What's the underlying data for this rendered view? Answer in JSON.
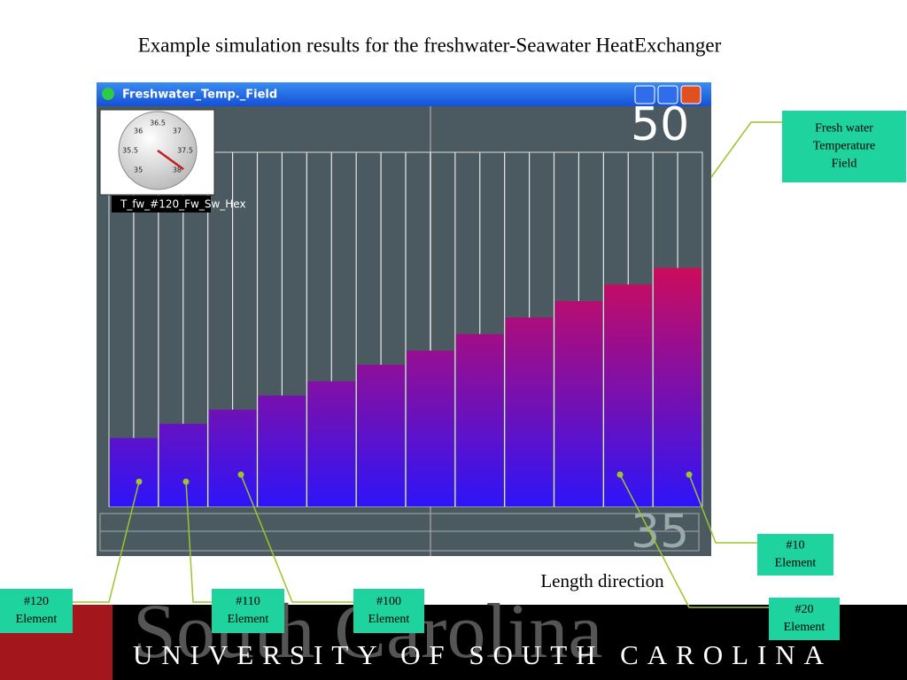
{
  "slide": {
    "title": "Example simulation results for the freshwater-Seawater HeatExchanger",
    "window_title": "Freshwater_Temp._Field",
    "gauge": {
      "labels": [
        "35",
        "35.5",
        "36",
        "36.5",
        "37",
        "37.5",
        "38"
      ],
      "value": 37.9,
      "range": [
        35,
        38
      ]
    },
    "gauge_caption": "T_fw_#120_Fw_Sw_Hex",
    "annotations": [
      {
        "lines": [
          "Fresh water",
          "Temperature",
          "Field"
        ]
      },
      {
        "lines": [
          "#10",
          "Element"
        ]
      },
      {
        "lines": [
          "#20",
          "Element"
        ]
      },
      {
        "lines": [
          "#100",
          "Element"
        ]
      },
      {
        "lines": [
          "#110",
          "Element"
        ]
      },
      {
        "lines": [
          "#120",
          "Element"
        ]
      }
    ],
    "axis_note": "Length direction",
    "footer": "UNIVERSITY OF SOUTH CAROLINA",
    "watermark": "South Carolina"
  },
  "chart_data": {
    "type": "bar",
    "categories": [
      null,
      null,
      null,
      null,
      null,
      null,
      null,
      null,
      null,
      null,
      null,
      null
    ],
    "values": [
      37.9,
      38.5,
      39.1,
      39.7,
      40.3,
      41.0,
      41.6,
      42.3,
      43.0,
      43.7,
      44.4,
      45.1
    ],
    "color_range": [
      "#2e14f8",
      "#cc0c5c"
    ],
    "ylim": [
      35,
      50
    ],
    "yticks": [
      35,
      50
    ]
  }
}
